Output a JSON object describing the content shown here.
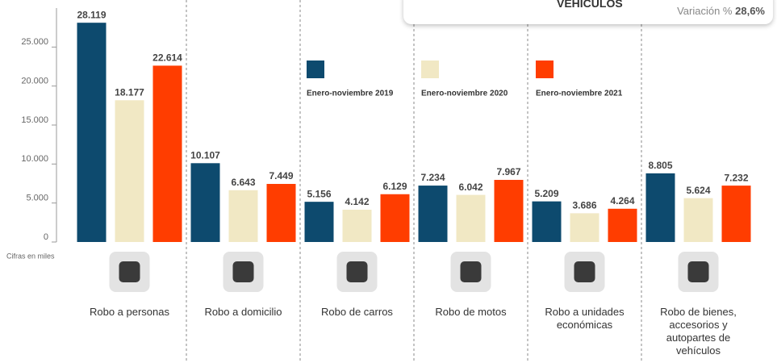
{
  "chart_data": {
    "type": "bar",
    "categories": [
      "Robo a personas",
      "Robo a domicilio",
      "Robo de carros",
      "Robo de motos",
      "Robo a unidades económicas",
      "Robo de bienes, accesorios y autopartes de vehículos"
    ],
    "series": [
      {
        "name": "Enero-noviembre 2019",
        "color": "#0d4a6e",
        "values": [
          28119,
          10107,
          5156,
          7234,
          5209,
          8805
        ],
        "value_labels": [
          "28.119",
          "10.107",
          "5.156",
          "7.234",
          "5.209",
          "8.805"
        ]
      },
      {
        "name": "Enero-noviembre 2020",
        "color": "#f1e8c4",
        "values": [
          18177,
          6643,
          4142,
          6042,
          3686,
          5624
        ],
        "value_labels": [
          "18.177",
          "6.643",
          "4.142",
          "6.042",
          "3.686",
          "5.624"
        ]
      },
      {
        "name": "Enero-noviembre 2021",
        "color": "#ff3d00",
        "values": [
          22614,
          7449,
          6129,
          7967,
          4264,
          7232
        ],
        "value_labels": [
          "22.614",
          "7.449",
          "6.129",
          "7.967",
          "4.264",
          "7.232"
        ]
      }
    ],
    "ylim": [
      0,
      30000
    ],
    "yticks": [
      0,
      {
        "value": 5000,
        "label": "5.000"
      },
      {
        "value": 10000,
        "label": "10.000"
      },
      {
        "value": 15000,
        "label": "15.000"
      },
      {
        "value": 20000,
        "label": "20.000"
      },
      {
        "value": 25000,
        "label": "25.000"
      }
    ],
    "y_note": "Cifras en miles",
    "box_title": "VEHÍCULOS",
    "box_variation_label": "Variación %",
    "box_variation_value": "28,6%"
  }
}
